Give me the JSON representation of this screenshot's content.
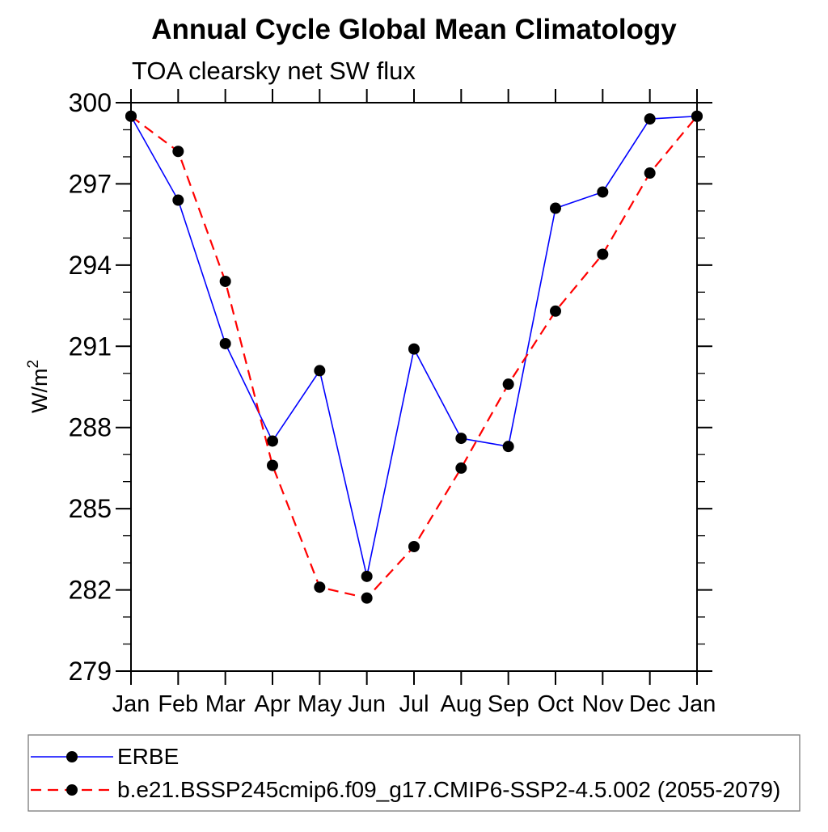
{
  "figure": {
    "title": "Annual Cycle Global Mean Climatology",
    "subtitle": "TOA clearsky net SW flux"
  },
  "chart_data": {
    "type": "line",
    "title": "Annual Cycle Global Mean Climatology",
    "subtitle": "TOA clearsky net SW flux",
    "ylabel": "W/m²",
    "ylabel_base": "W/m",
    "ylabel_sup": "2",
    "xlabel": "",
    "categories": [
      "Jan",
      "Feb",
      "Mar",
      "Apr",
      "May",
      "Jun",
      "Jul",
      "Aug",
      "Sep",
      "Oct",
      "Nov",
      "Dec",
      "Jan"
    ],
    "y_tick_labels": [
      "279",
      "282",
      "285",
      "288",
      "291",
      "294",
      "297",
      "300"
    ],
    "ylim": [
      279,
      300
    ],
    "y_major_step": 3,
    "y_minor_step": 1,
    "grid": false,
    "legend_position": "bottom-left-box",
    "series": [
      {
        "name": "ERBE",
        "color": "#0000ff",
        "line_style": "solid",
        "marker": "circle",
        "marker_color": "#000000",
        "values": [
          299.5,
          296.4,
          291.1,
          287.5,
          290.1,
          282.5,
          290.9,
          287.6,
          287.3,
          296.1,
          296.7,
          299.4,
          299.5
        ]
      },
      {
        "name": "b.e21.BSSP245cmip6.f09_g17.CMIP6-SSP2-4.5.002 (2055-2079)",
        "color": "#ff0000",
        "line_style": "dashed",
        "marker": "circle",
        "marker_color": "#000000",
        "values": [
          299.5,
          298.2,
          293.4,
          286.6,
          282.1,
          281.7,
          283.6,
          286.5,
          289.6,
          292.3,
          294.4,
          297.4,
          299.5
        ]
      }
    ]
  }
}
